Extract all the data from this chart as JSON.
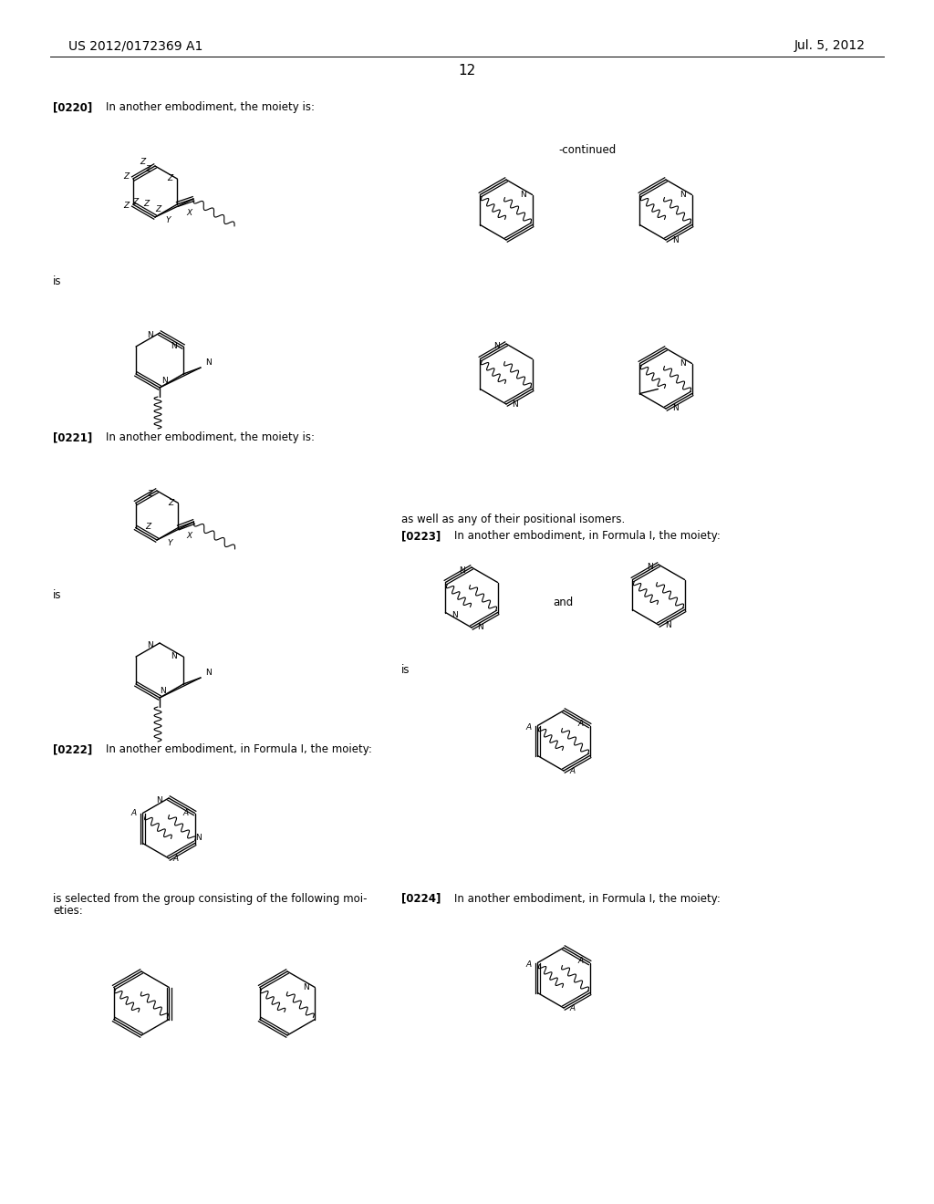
{
  "page_number": "12",
  "header_left": "US 2012/0172369 A1",
  "header_right": "Jul. 5, 2012",
  "background_color": "#ffffff",
  "text_color": "#000000",
  "font_size_header": 10.5,
  "font_size_body": 8.5,
  "continued_text": "-continued"
}
